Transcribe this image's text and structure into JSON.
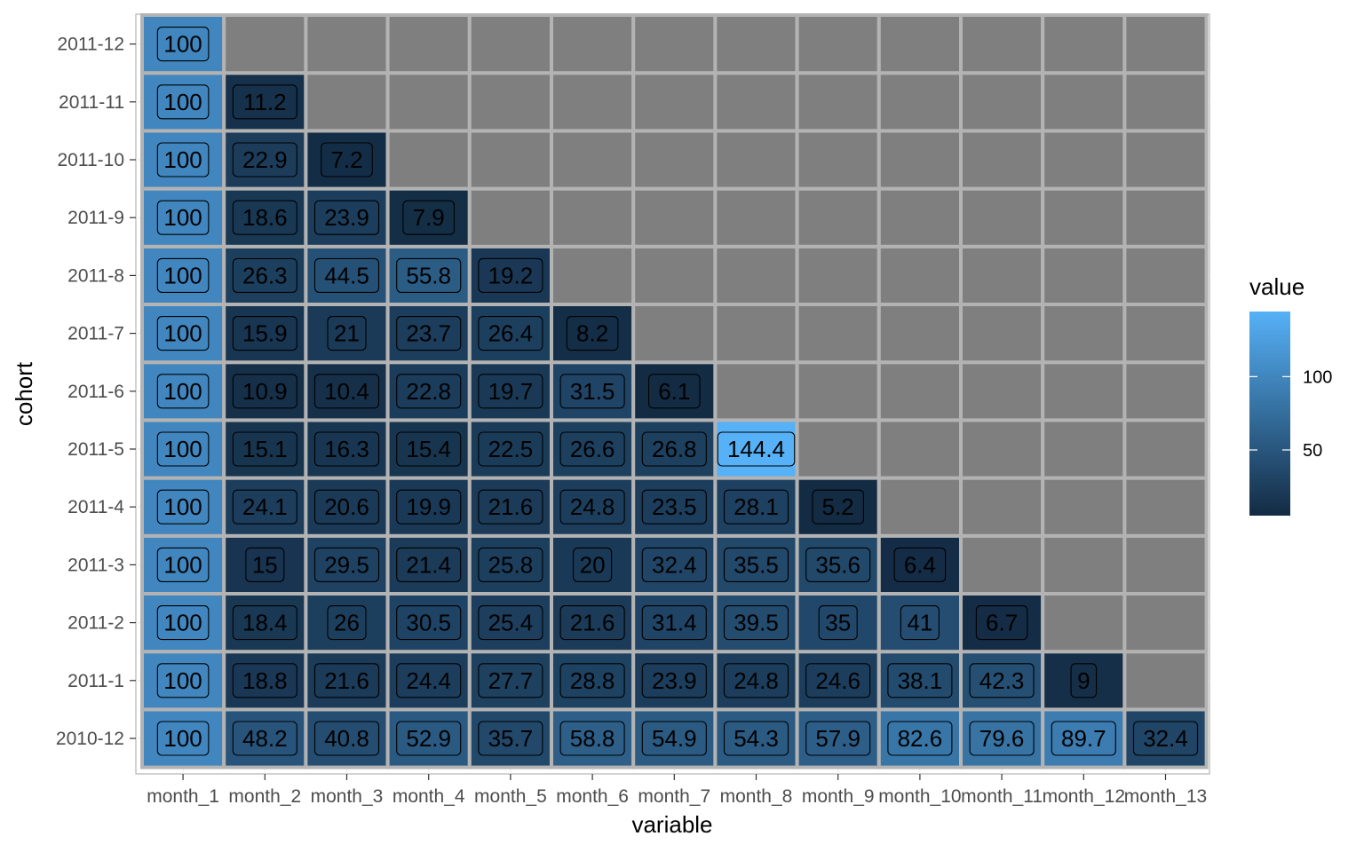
{
  "chart_data": {
    "type": "heatmap",
    "xlabel": "variable",
    "ylabel": "cohort",
    "x": [
      "month_1",
      "month_2",
      "month_3",
      "month_4",
      "month_5",
      "month_6",
      "month_7",
      "month_8",
      "month_9",
      "month_10",
      "month_11",
      "month_12",
      "month_13"
    ],
    "y": [
      "2010-12",
      "2011-1",
      "2011-2",
      "2011-3",
      "2011-4",
      "2011-5",
      "2011-6",
      "2011-7",
      "2011-8",
      "2011-9",
      "2011-10",
      "2011-11",
      "2011-12"
    ],
    "values": [
      [
        100,
        48.2,
        40.8,
        52.9,
        35.7,
        58.8,
        54.9,
        54.3,
        57.9,
        82.6,
        79.6,
        89.7,
        32.4
      ],
      [
        100,
        18.8,
        21.6,
        24.4,
        27.7,
        28.8,
        23.9,
        24.8,
        24.6,
        38.1,
        42.3,
        9,
        null
      ],
      [
        100,
        18.4,
        26,
        30.5,
        25.4,
        21.6,
        31.4,
        39.5,
        35,
        41,
        6.7,
        null,
        null
      ],
      [
        100,
        15,
        29.5,
        21.4,
        25.8,
        20,
        32.4,
        35.5,
        35.6,
        6.4,
        null,
        null,
        null
      ],
      [
        100,
        24.1,
        20.6,
        19.9,
        21.6,
        24.8,
        23.5,
        28.1,
        5.2,
        null,
        null,
        null,
        null
      ],
      [
        100,
        15.1,
        16.3,
        15.4,
        22.5,
        26.6,
        26.8,
        144.4,
        null,
        null,
        null,
        null,
        null
      ],
      [
        100,
        10.9,
        10.4,
        22.8,
        19.7,
        31.5,
        6.1,
        null,
        null,
        null,
        null,
        null,
        null
      ],
      [
        100,
        15.9,
        21,
        23.7,
        26.4,
        8.2,
        null,
        null,
        null,
        null,
        null,
        null,
        null
      ],
      [
        100,
        26.3,
        44.5,
        55.8,
        19.2,
        null,
        null,
        null,
        null,
        null,
        null,
        null,
        null
      ],
      [
        100,
        18.6,
        23.9,
        7.9,
        null,
        null,
        null,
        null,
        null,
        null,
        null,
        null,
        null
      ],
      [
        100,
        22.9,
        7.2,
        null,
        null,
        null,
        null,
        null,
        null,
        null,
        null,
        null,
        null
      ],
      [
        100,
        11.2,
        null,
        null,
        null,
        null,
        null,
        null,
        null,
        null,
        null,
        null,
        null
      ],
      [
        100,
        null,
        null,
        null,
        null,
        null,
        null,
        null,
        null,
        null,
        null,
        null,
        null
      ]
    ],
    "value_labels": [
      [
        "100",
        "48.2",
        "40.8",
        "52.9",
        "35.7",
        "58.8",
        "54.9",
        "54.3",
        "57.9",
        "82.6",
        "79.6",
        "89.7",
        "32.4"
      ],
      [
        "100",
        "18.8",
        "21.6",
        "24.4",
        "27.7",
        "28.8",
        "23.9",
        "24.8",
        "24.6",
        "38.1",
        "42.3",
        "9",
        ""
      ],
      [
        "100",
        "18.4",
        "26",
        "30.5",
        "25.4",
        "21.6",
        "31.4",
        "39.5",
        "35",
        "41",
        "6.7",
        "",
        ""
      ],
      [
        "100",
        "15",
        "29.5",
        "21.4",
        "25.8",
        "20",
        "32.4",
        "35.5",
        "35.6",
        "6.4",
        "",
        "",
        ""
      ],
      [
        "100",
        "24.1",
        "20.6",
        "19.9",
        "21.6",
        "24.8",
        "23.5",
        "28.1",
        "5.2",
        "",
        "",
        "",
        ""
      ],
      [
        "100",
        "15.1",
        "16.3",
        "15.4",
        "22.5",
        "26.6",
        "26.8",
        "144.4",
        "",
        "",
        "",
        "",
        ""
      ],
      [
        "100",
        "10.9",
        "10.4",
        "22.8",
        "19.7",
        "31.5",
        "6.1",
        "",
        "",
        "",
        "",
        "",
        ""
      ],
      [
        "100",
        "15.9",
        "21",
        "23.7",
        "26.4",
        "8.2",
        "",
        "",
        "",
        "",
        "",
        "",
        ""
      ],
      [
        "100",
        "26.3",
        "44.5",
        "55.8",
        "19.2",
        "",
        "",
        "",
        "",
        "",
        "",
        "",
        ""
      ],
      [
        "100",
        "18.6",
        "23.9",
        "7.9",
        "",
        "",
        "",
        "",
        "",
        "",
        "",
        "",
        ""
      ],
      [
        "100",
        "22.9",
        "7.2",
        "",
        "",
        "",
        "",
        "",
        "",
        "",
        "",
        "",
        ""
      ],
      [
        "100",
        "11.2",
        "",
        "",
        "",
        "",
        "",
        "",
        "",
        "",
        "",
        "",
        ""
      ],
      [
        "100",
        "",
        "",
        "",
        "",
        "",
        "",
        "",
        "",
        "",
        "",
        "",
        ""
      ]
    ],
    "legend": {
      "title": "value",
      "ticks": [
        50,
        100
      ],
      "tick_labels": [
        "50",
        "100"
      ],
      "range": [
        5.2,
        144.4
      ],
      "low_color": "#132B43",
      "high_color": "#56B1F7",
      "placement": "right"
    },
    "na_color": "#7f7f7f",
    "tile_border_color": "#b3b3b3",
    "grid": true
  }
}
